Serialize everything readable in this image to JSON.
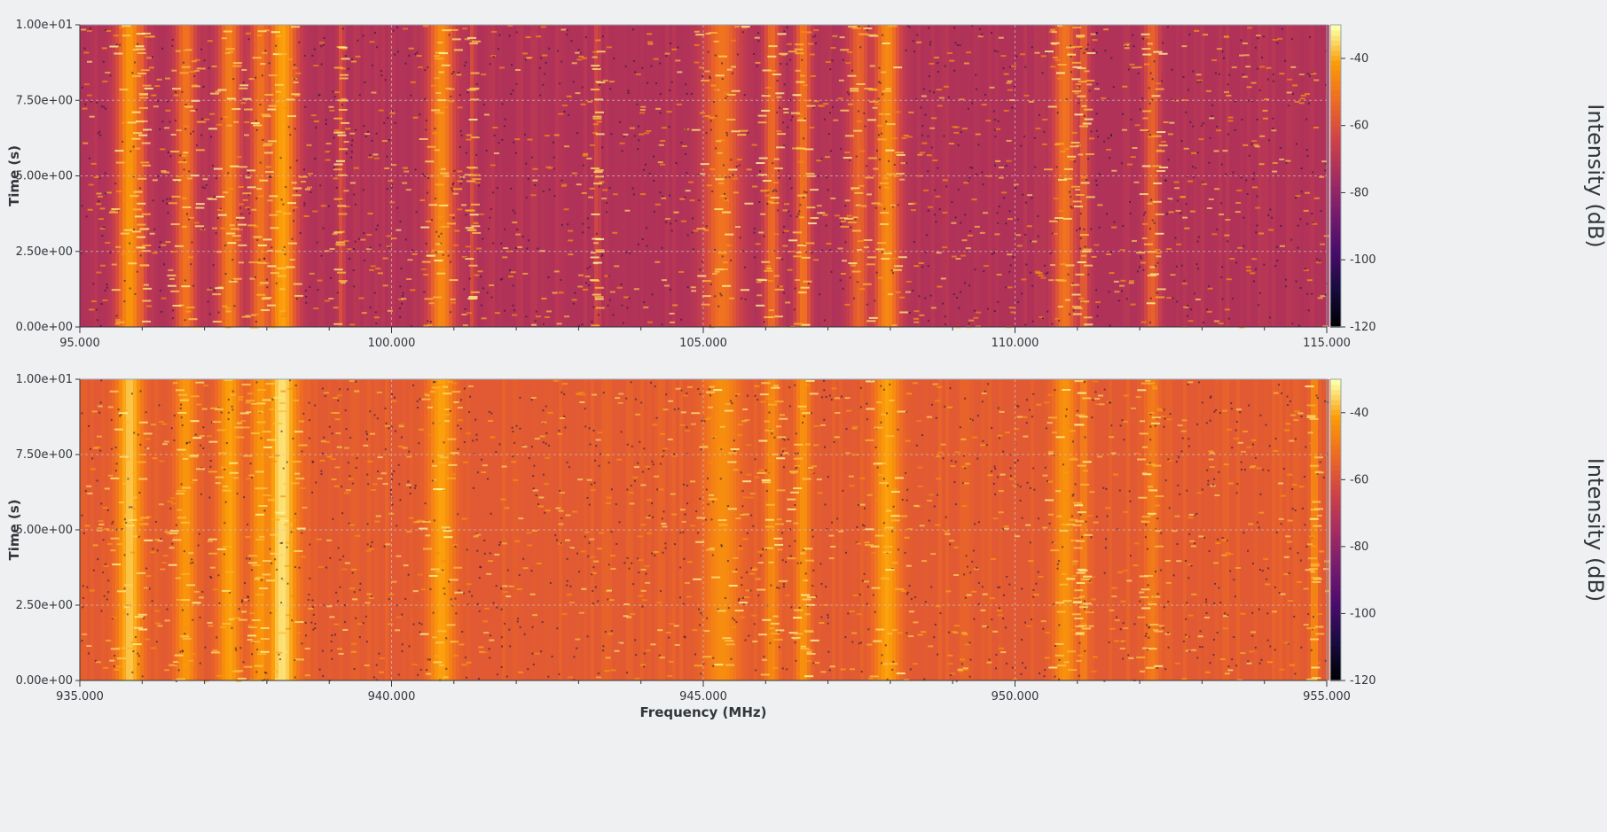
{
  "chart_data": [
    {
      "type": "heatmap",
      "title": "",
      "xlabel": "",
      "ylabel": "Time (s)",
      "xlim": [
        95.0,
        115.0
      ],
      "ylim": [
        0.0,
        10.0
      ],
      "x_ticks": [
        "95.000",
        "100.000",
        "105.000",
        "110.000",
        "115.000"
      ],
      "y_ticks": [
        "0.00e+00",
        "2.50e+00",
        "5.00e+00",
        "7.50e+00",
        "1.00e+01"
      ],
      "colorbar": {
        "label": "Intensity (dB)",
        "range": [
          -120,
          -30
        ],
        "ticks": [
          "-40",
          "-60",
          "-80",
          "-100",
          "-120"
        ]
      },
      "background_level_db": -72,
      "grid": true,
      "colormap": "inferno",
      "bands": [
        {
          "freq": 95.8,
          "width": 0.25,
          "level_db": -42
        },
        {
          "freq": 96.0,
          "width": 0.08,
          "level_db": -55
        },
        {
          "freq": 96.7,
          "width": 0.2,
          "level_db": -50
        },
        {
          "freq": 97.4,
          "width": 0.22,
          "level_db": -48
        },
        {
          "freq": 97.9,
          "width": 0.2,
          "level_db": -50
        },
        {
          "freq": 98.25,
          "width": 0.28,
          "level_db": -40
        },
        {
          "freq": 99.2,
          "width": 0.05,
          "level_db": -58
        },
        {
          "freq": 100.8,
          "width": 0.25,
          "level_db": -45
        },
        {
          "freq": 101.3,
          "width": 0.05,
          "level_db": -60
        },
        {
          "freq": 103.3,
          "width": 0.05,
          "level_db": -60
        },
        {
          "freq": 105.3,
          "width": 0.35,
          "level_db": -50
        },
        {
          "freq": 106.1,
          "width": 0.15,
          "level_db": -52
        },
        {
          "freq": 106.6,
          "width": 0.15,
          "level_db": -50
        },
        {
          "freq": 107.5,
          "width": 0.2,
          "level_db": -54
        },
        {
          "freq": 107.95,
          "width": 0.25,
          "level_db": -45
        },
        {
          "freq": 110.8,
          "width": 0.22,
          "level_db": -50
        },
        {
          "freq": 111.1,
          "width": 0.1,
          "level_db": -55
        },
        {
          "freq": 112.2,
          "width": 0.15,
          "level_db": -54
        }
      ]
    },
    {
      "type": "heatmap",
      "title": "",
      "xlabel": "Frequency (MHz)",
      "ylabel": "Time (s)",
      "xlim": [
        935.0,
        955.0
      ],
      "ylim": [
        0.0,
        10.0
      ],
      "x_ticks": [
        "935.000",
        "940.000",
        "945.000",
        "950.000",
        "955.000"
      ],
      "y_ticks": [
        "0.00e+00",
        "2.50e+00",
        "5.00e+00",
        "7.50e+00",
        "1.00e+01"
      ],
      "colorbar": {
        "label": "Intensity (dB)",
        "range": [
          -120,
          -30
        ],
        "ticks": [
          "-40",
          "-60",
          "-80",
          "-100",
          "-120"
        ]
      },
      "background_level_db": -57,
      "grid": true,
      "colormap": "inferno",
      "bands": [
        {
          "freq": 935.8,
          "width": 0.25,
          "level_db": -36
        },
        {
          "freq": 936.7,
          "width": 0.2,
          "level_db": -42
        },
        {
          "freq": 937.4,
          "width": 0.22,
          "level_db": -40
        },
        {
          "freq": 937.9,
          "width": 0.2,
          "level_db": -42
        },
        {
          "freq": 938.25,
          "width": 0.3,
          "level_db": -33
        },
        {
          "freq": 940.8,
          "width": 0.25,
          "level_db": -40
        },
        {
          "freq": 945.3,
          "width": 0.35,
          "level_db": -44
        },
        {
          "freq": 946.1,
          "width": 0.15,
          "level_db": -45
        },
        {
          "freq": 946.6,
          "width": 0.15,
          "level_db": -43
        },
        {
          "freq": 947.95,
          "width": 0.25,
          "level_db": -40
        },
        {
          "freq": 950.8,
          "width": 0.22,
          "level_db": -43
        },
        {
          "freq": 951.1,
          "width": 0.1,
          "level_db": -47
        },
        {
          "freq": 952.2,
          "width": 0.15,
          "level_db": -48
        },
        {
          "freq": 954.8,
          "width": 0.08,
          "level_db": -44
        }
      ]
    }
  ]
}
